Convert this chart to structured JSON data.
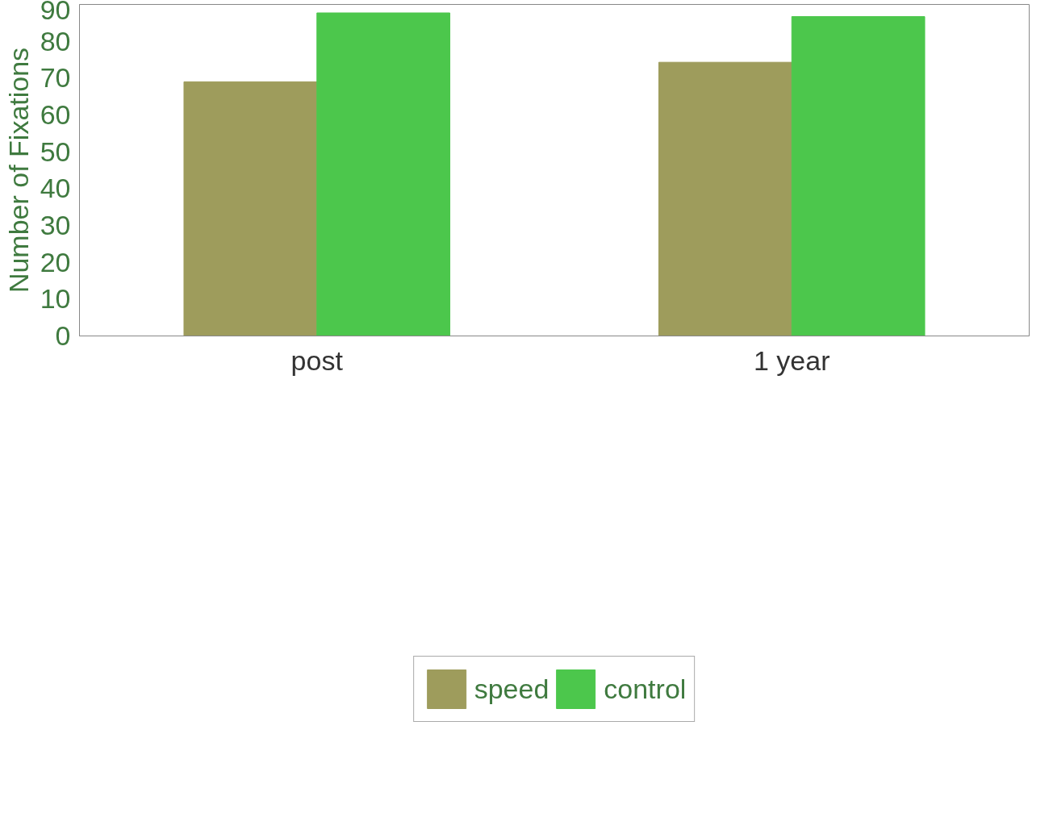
{
  "chart_data": {
    "type": "bar",
    "ylabel": "Number of Fixations",
    "categories": [
      "post",
      "1 year"
    ],
    "series": [
      {
        "name": "speed",
        "color": "#9e9c5c",
        "values": [
          69,
          74.3
        ]
      },
      {
        "name": "control",
        "color": "#4cc74c",
        "values": [
          87.7,
          86.7
        ]
      }
    ],
    "ylim": [
      0,
      90
    ],
    "yticks": [
      0,
      10,
      20,
      30,
      40,
      50,
      60,
      70,
      80,
      90
    ],
    "grid": false,
    "legend": "bottom"
  }
}
